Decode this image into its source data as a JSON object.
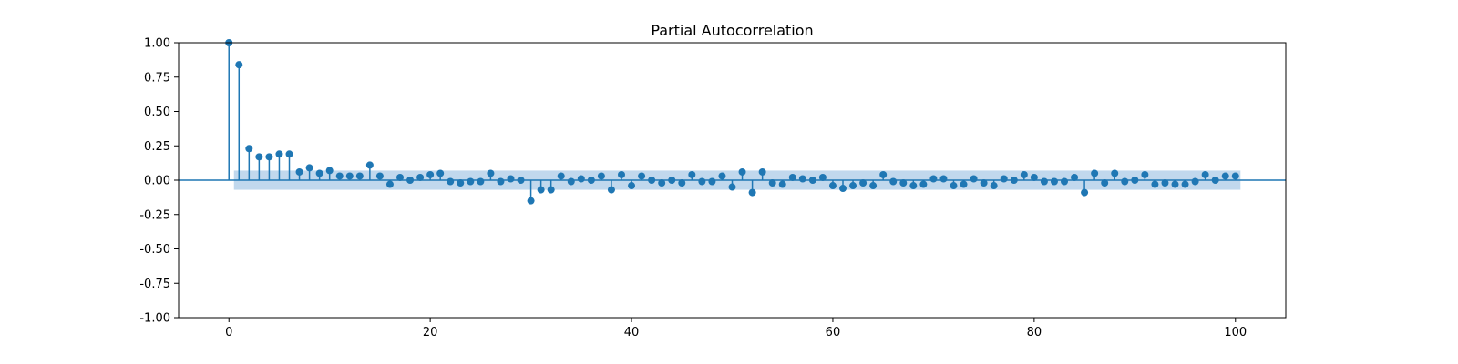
{
  "chart_data": {
    "type": "stem",
    "title": "Partial Autocorrelation",
    "xlabel": "",
    "ylabel": "",
    "xlim": [
      -5,
      105
    ],
    "ylim": [
      -1.0,
      1.0
    ],
    "x_ticks": [
      0,
      20,
      40,
      60,
      80,
      100
    ],
    "y_ticks": [
      "-1.00",
      "-0.75",
      "-0.50",
      "-0.25",
      "0.00",
      "0.25",
      "0.50",
      "0.75",
      "1.00"
    ],
    "confidence_band": {
      "from_lag": 0.5,
      "to_lag": 100.5,
      "upper": 0.07,
      "lower": -0.07
    },
    "colors": {
      "stem": "#1f77b4",
      "band": "#a6c8e5"
    },
    "lags": [
      0,
      1,
      2,
      3,
      4,
      5,
      6,
      7,
      8,
      9,
      10,
      11,
      12,
      13,
      14,
      15,
      16,
      17,
      18,
      19,
      20,
      21,
      22,
      23,
      24,
      25,
      26,
      27,
      28,
      29,
      30,
      31,
      32,
      33,
      34,
      35,
      36,
      37,
      38,
      39,
      40,
      41,
      42,
      43,
      44,
      45,
      46,
      47,
      48,
      49,
      50,
      51,
      52,
      53,
      54,
      55,
      56,
      57,
      58,
      59,
      60,
      61,
      62,
      63,
      64,
      65,
      66,
      67,
      68,
      69,
      70,
      71,
      72,
      73,
      74,
      75,
      76,
      77,
      78,
      79,
      80,
      81,
      82,
      83,
      84,
      85,
      86,
      87,
      88,
      89,
      90,
      91,
      92,
      93,
      94,
      95,
      96,
      97,
      98,
      99,
      100
    ],
    "values": [
      1.0,
      0.84,
      0.23,
      0.17,
      0.17,
      0.19,
      0.19,
      0.06,
      0.09,
      0.05,
      0.07,
      0.03,
      0.03,
      0.03,
      0.11,
      0.03,
      -0.03,
      0.02,
      0.0,
      0.02,
      0.04,
      0.05,
      -0.01,
      -0.02,
      -0.01,
      -0.01,
      0.05,
      -0.01,
      0.01,
      0.0,
      -0.15,
      -0.07,
      -0.07,
      0.03,
      -0.01,
      0.01,
      0.0,
      0.03,
      -0.07,
      0.04,
      -0.04,
      0.03,
      0.0,
      -0.02,
      0.0,
      -0.02,
      0.04,
      -0.01,
      -0.01,
      0.03,
      -0.05,
      0.06,
      -0.09,
      0.06,
      -0.02,
      -0.03,
      0.02,
      0.01,
      0.0,
      0.02,
      -0.04,
      -0.06,
      -0.04,
      -0.02,
      -0.04,
      0.04,
      -0.01,
      -0.02,
      -0.04,
      -0.03,
      0.01,
      0.01,
      -0.04,
      -0.03,
      0.01,
      -0.02,
      -0.04,
      0.01,
      0.0,
      0.04,
      0.02,
      -0.01,
      -0.01,
      -0.01,
      0.02,
      -0.09,
      0.05,
      -0.02,
      0.05,
      -0.01,
      0.0,
      0.04,
      -0.03,
      -0.02,
      -0.03,
      -0.03,
      -0.01,
      0.04,
      0.0,
      0.03,
      0.03
    ]
  }
}
